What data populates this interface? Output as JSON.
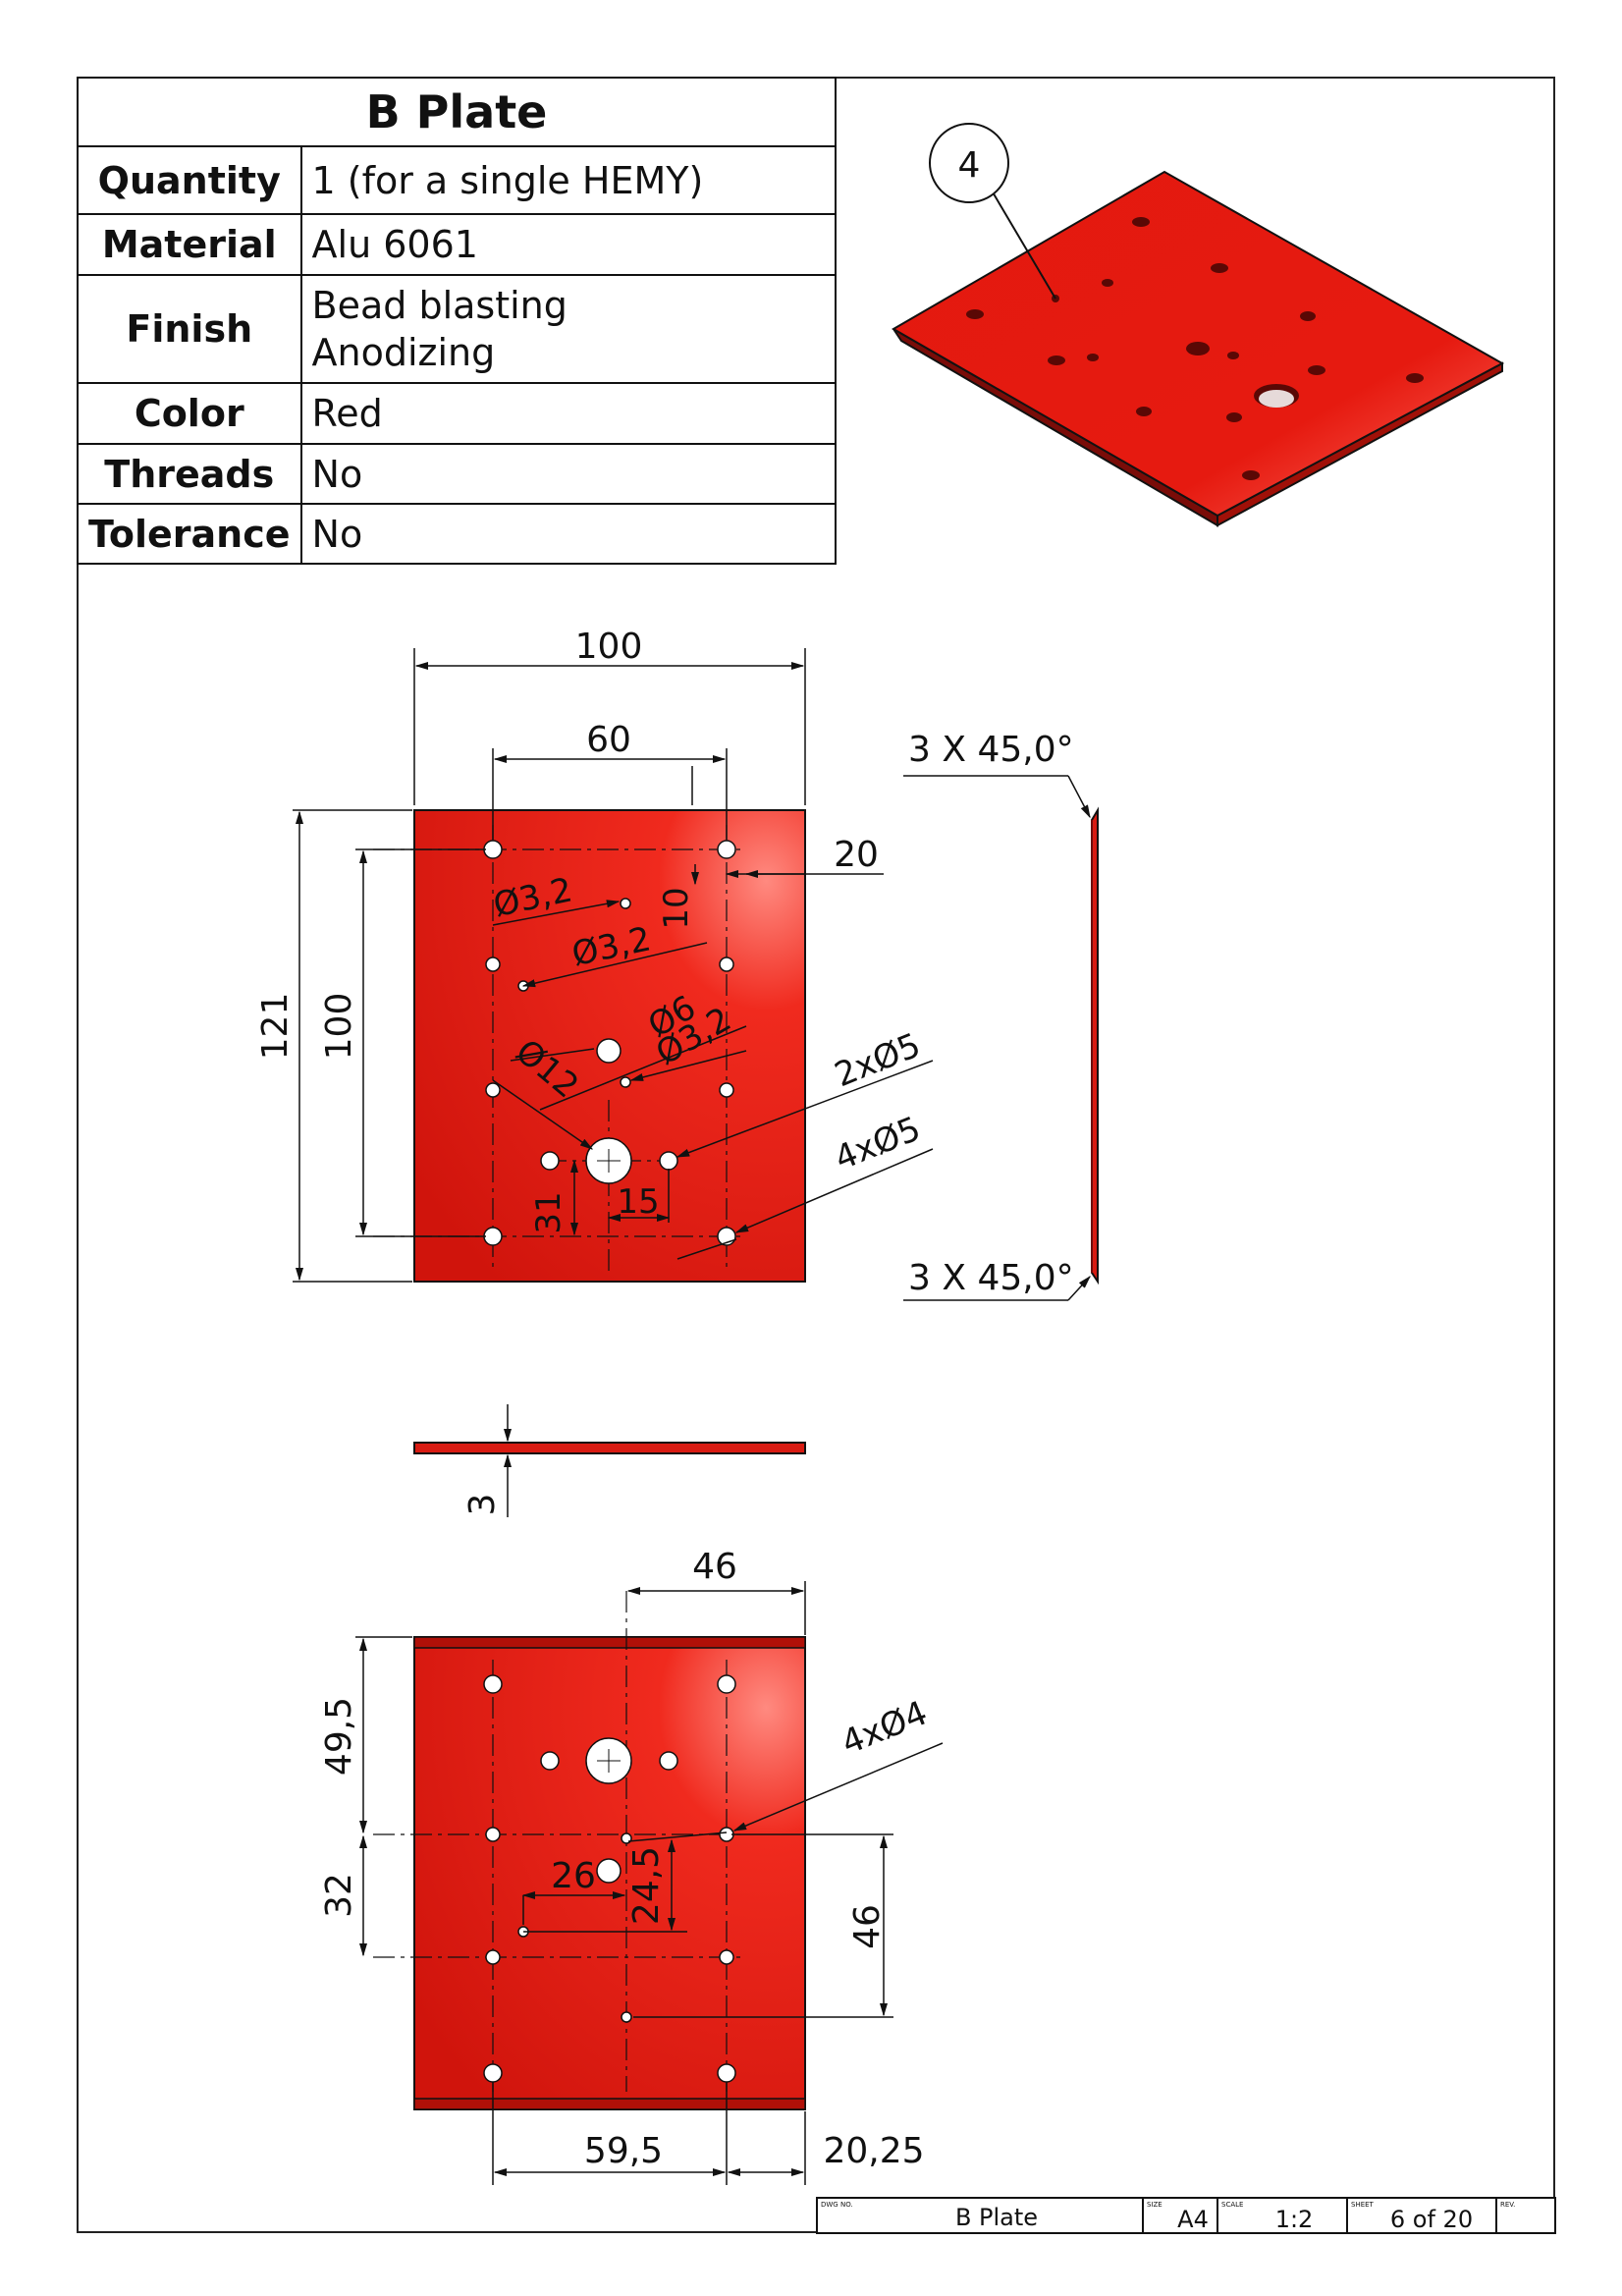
{
  "properties": {
    "title": "B Plate",
    "rows": [
      {
        "label": "Quantity",
        "values": [
          "1 (for a single HEMY)"
        ]
      },
      {
        "label": "Material",
        "values": [
          "Alu 6061"
        ]
      },
      {
        "label": "Finish",
        "values": [
          "Bead blasting",
          "Anodizing"
        ]
      },
      {
        "label": "Color",
        "values": [
          "Red"
        ]
      },
      {
        "label": "Threads",
        "values": [
          "No"
        ]
      },
      {
        "label": "Tolerance",
        "values": [
          "No"
        ]
      }
    ]
  },
  "iso_view": {
    "balloon": "4"
  },
  "front_view": {
    "dims": {
      "width": "100",
      "hole_span": "60",
      "edge_offset": "20",
      "height_total": "121",
      "height_holes": "100",
      "d32_a": "Ø3,2",
      "d32_b": "Ø3,2",
      "d32_c": "Ø3,2",
      "d6": "Ø6",
      "d12": "Ø12",
      "ten": "10",
      "two_d5": "2xØ5",
      "four_d5": "4xØ5",
      "thirtyone": "31",
      "fifteen": "15"
    }
  },
  "side_view": {
    "chamfer_top": "3 X 45,0°",
    "chamfer_bottom": "3 X 45,0°"
  },
  "edge_view": {
    "thickness": "3"
  },
  "back_view": {
    "dims": {
      "fortysix_top": "46",
      "fortynine": "49,5",
      "thirtytwo": "32",
      "twentysix": "26",
      "twentyfour": "24,5",
      "fortysix_right": "46",
      "four_d4": "4xØ4",
      "fiftynine": "59,5",
      "twenty25": "20,25"
    }
  },
  "title_block": {
    "dwg_label": "DWG NO.",
    "dwg_value": "B Plate",
    "size_label": "SIZE",
    "size_value": "A4",
    "scale_label": "SCALE",
    "scale_value": "1:2",
    "sheet_label": "SHEET",
    "sheet_value": "6 of 20",
    "rev_label": "REV.",
    "rev_value": ""
  },
  "colors": {
    "plate": "#d81b12",
    "plate_dark": "#8a0e0a",
    "line": "#111111"
  }
}
